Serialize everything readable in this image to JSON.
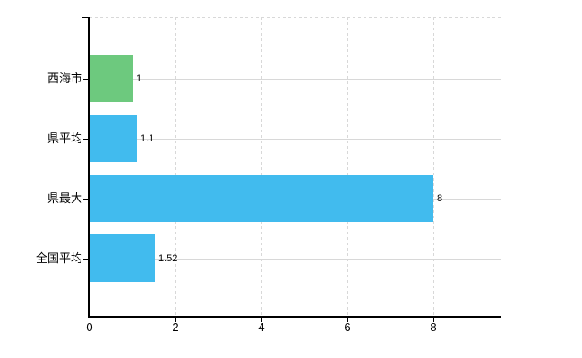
{
  "chart_data": {
    "type": "bar",
    "orientation": "horizontal",
    "title": "",
    "xlabel": "",
    "ylabel": "",
    "categories": [
      "西海市",
      "県平均",
      "県最大",
      "全国平均"
    ],
    "values": [
      1,
      1.1,
      8,
      1.52
    ],
    "value_labels": [
      "1",
      "1.1",
      "8",
      "1.52"
    ],
    "bar_colors": [
      "#6dc97e",
      "#41bbee",
      "#41bbee",
      "#41bbee"
    ],
    "x_ticks": [
      0,
      2,
      4,
      6,
      8
    ],
    "x_tick_labels": [
      "0",
      "2",
      "4",
      "6",
      "8"
    ],
    "xlim": [
      0,
      9.58
    ],
    "grid": true,
    "legend": null
  },
  "colors": {
    "background": "#ffffff",
    "axis": "#000000",
    "grid": "#d8d8d8",
    "text": "#000000",
    "bar_green": "#6dc97e",
    "bar_blue": "#41bbee"
  }
}
